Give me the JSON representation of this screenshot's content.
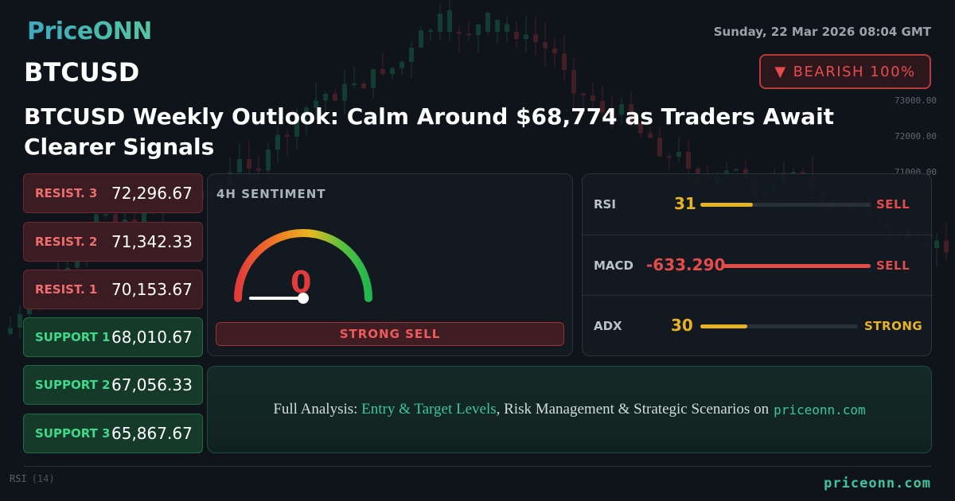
{
  "brand": {
    "logo": "PriceONN",
    "footer_site": "priceonn.com"
  },
  "header": {
    "date": "Sunday, 22 Mar 2026 08:04 GMT",
    "symbol": "BTCUSD",
    "headline": "BTCUSD Weekly Outlook: Calm Around $68,774 as Traders Await Clearer Signals",
    "bias_badge": {
      "arrow": "▼",
      "label": "BEARISH 100%",
      "color": "#e64b4b"
    }
  },
  "levels": [
    {
      "label": "RESIST. 3",
      "value": "72,296.67",
      "kind": "resist"
    },
    {
      "label": "RESIST. 2",
      "value": "71,342.33",
      "kind": "resist"
    },
    {
      "label": "RESIST. 1",
      "value": "70,153.67",
      "kind": "resist"
    },
    {
      "label": "SUPPORT 1",
      "value": "68,010.67",
      "kind": "support"
    },
    {
      "label": "SUPPORT 2",
      "value": "67,056.33",
      "kind": "support"
    },
    {
      "label": "SUPPORT 3",
      "value": "65,867.67",
      "kind": "support"
    }
  ],
  "sentiment": {
    "title": "4H SENTIMENT",
    "score": "0",
    "score_fraction": 0.0,
    "signal": "STRONG SELL"
  },
  "indicators": [
    {
      "name": "RSI",
      "value": "31",
      "value_color": "#e8b321",
      "bar_fraction": 0.31,
      "bar_color": "#e8b321",
      "signal": "SELL",
      "signal_color": "#e64b4b"
    },
    {
      "name": "MACD",
      "value": "-633.290",
      "value_color": "#e64b4b",
      "bar_fraction": 1.0,
      "bar_color": "#e64b4b",
      "signal": "SELL",
      "signal_color": "#e64b4b"
    },
    {
      "name": "ADX",
      "value": "30",
      "value_color": "#e8b321",
      "bar_fraction": 0.3,
      "bar_color": "#e8b321",
      "signal": "STRONG",
      "signal_color": "#e8b321"
    }
  ],
  "promo": {
    "prefix": "Full Analysis:",
    "highlight": "Entry & Target Levels",
    "middle": ", Risk Management & Strategic Scenarios on",
    "site": "priceonn.com"
  },
  "background": {
    "price_labels": [
      "73000.00",
      "72000.00",
      "71000.00"
    ],
    "rsi_label": "RSI",
    "rsi_period": "(14)"
  },
  "colors": {
    "accent": "#3cc69a",
    "bear": "#e64b4b",
    "bull": "#3fd98a",
    "neutral": "#e8b321"
  }
}
